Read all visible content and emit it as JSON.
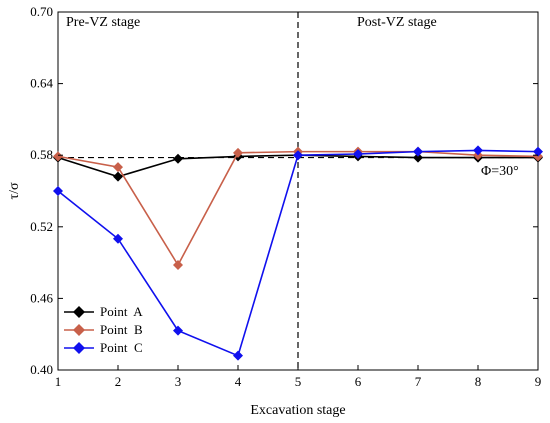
{
  "chart_data": {
    "type": "line",
    "x": [
      1,
      2,
      3,
      4,
      5,
      6,
      7,
      8,
      9
    ],
    "xlabel": "Excavation stage",
    "ylabel": "τ/σ",
    "xlim": [
      1,
      9
    ],
    "ylim": [
      0.4,
      0.7
    ],
    "xticks": [
      "1",
      "2",
      "3",
      "4",
      "5",
      "6",
      "7",
      "8",
      "9"
    ],
    "yticks": [
      "0.40",
      "0.46",
      "0.52",
      "0.58",
      "0.64",
      "0.70"
    ],
    "grid": false,
    "legend_position": "bottom-left",
    "series": [
      {
        "name": "Point  A",
        "color": "#000000",
        "marker": "diamond",
        "values": [
          0.578,
          0.562,
          0.577,
          0.579,
          0.58,
          0.579,
          0.578,
          0.578,
          0.578
        ]
      },
      {
        "name": "Point  B",
        "color": "#c8604a",
        "marker": "diamond",
        "values": [
          0.579,
          0.57,
          0.488,
          0.582,
          0.583,
          0.583,
          0.583,
          0.58,
          0.579
        ]
      },
      {
        "name": "Point  C",
        "color": "#1010ee",
        "marker": "diamond",
        "values": [
          0.55,
          0.51,
          0.433,
          0.412,
          0.58,
          0.581,
          0.583,
          0.584,
          0.583
        ]
      }
    ],
    "reference_line": {
      "y": 0.578,
      "label": "Φ=30°"
    },
    "divider_x": 5,
    "stage_labels": {
      "left": "Pre-VZ stage",
      "right": "Post-VZ stage"
    }
  }
}
